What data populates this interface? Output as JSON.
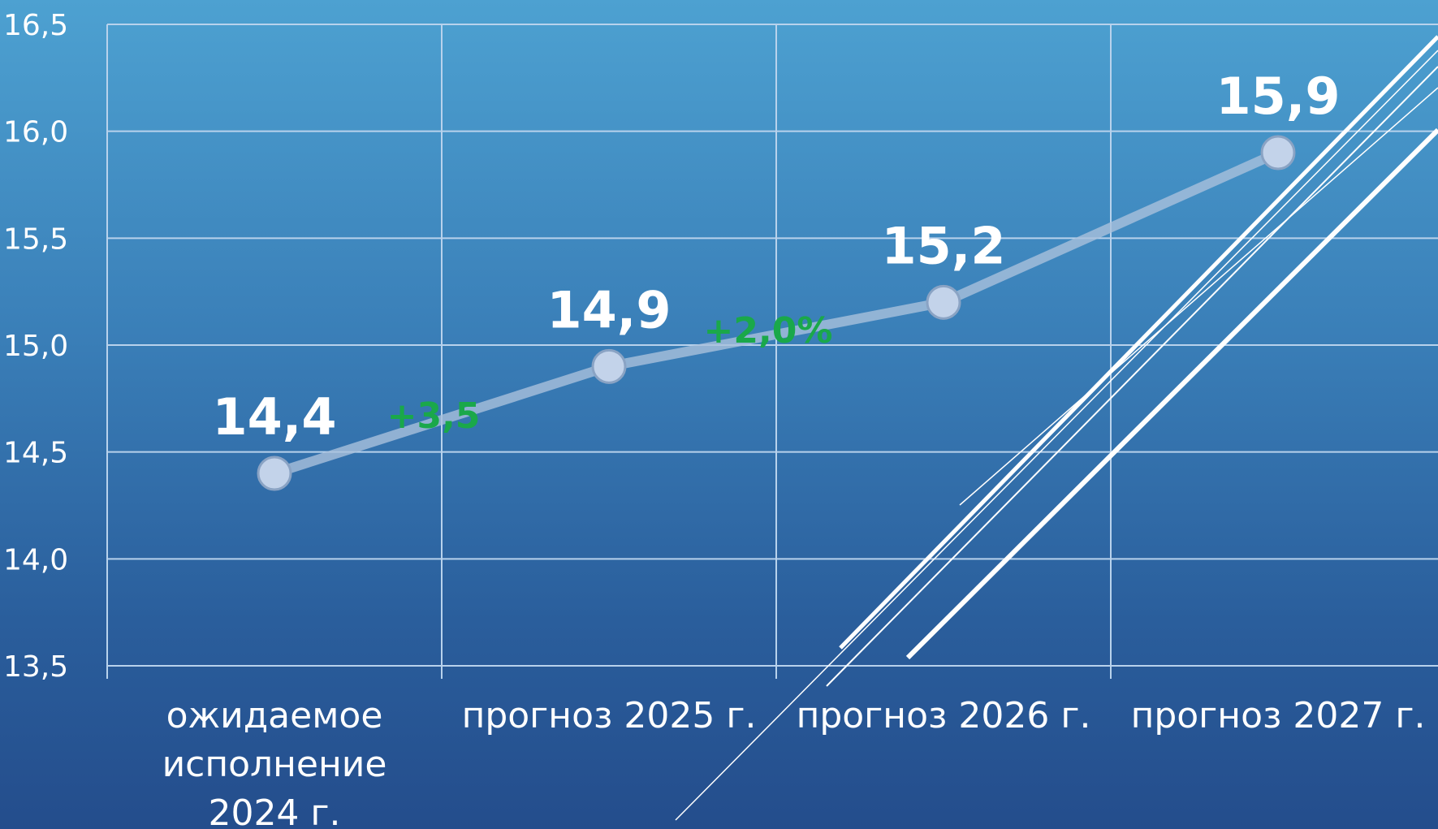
{
  "chart_data": {
    "type": "line",
    "categories": [
      "ожидаемое исполнение 2024 г.",
      "прогноз 2025 г.",
      "прогноз 2026 г.",
      "прогноз 2027 г."
    ],
    "category_lines": [
      [
        "ожидаемое",
        "исполнение",
        "2024 г."
      ],
      [
        "прогноз 2025 г."
      ],
      [
        "прогноз 2026 г."
      ],
      [
        "прогноз 2027 г."
      ]
    ],
    "values": [
      14.4,
      14.9,
      15.2,
      15.9
    ],
    "data_labels": [
      "14,4",
      "14,9",
      "15,2",
      "15,9"
    ],
    "ylim": [
      13.5,
      16.5
    ],
    "yticks": [
      13.5,
      14.0,
      14.5,
      15.0,
      15.5,
      16.0,
      16.5
    ],
    "ytick_labels": [
      "13,5",
      "14,0",
      "14,5",
      "15,0",
      "15,5",
      "16,0",
      "16,5"
    ],
    "grid": true,
    "annotations": [
      {
        "text": "+3,5",
        "between": [
          0,
          1
        ]
      },
      {
        "text": "+2,0%",
        "between": [
          1,
          2
        ]
      }
    ],
    "colors": {
      "line": "#a9c1dc",
      "marker": "#c3d3ea",
      "grid": "#b8d2ec",
      "growth": "#1aa84a"
    }
  }
}
